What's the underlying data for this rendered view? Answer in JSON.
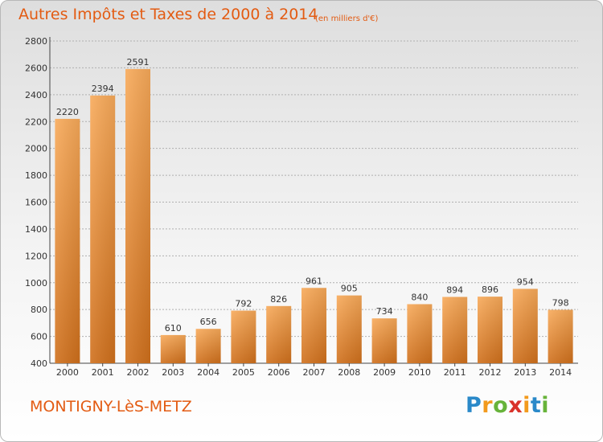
{
  "header": {
    "title": "Autres Impôts et Taxes de 2000 à 2014",
    "subtitle": "(en milliers d'€)"
  },
  "footer": {
    "commune": "MONTIGNY-LèS-METZ",
    "logo_text": "Proxiti",
    "logo_letters": [
      {
        "char": "P",
        "color": "#2a89c9"
      },
      {
        "char": "r",
        "color": "#f29a1d"
      },
      {
        "char": "o",
        "color": "#67b33a"
      },
      {
        "char": "x",
        "color": "#d9322b"
      },
      {
        "char": "i",
        "color": "#f29a1d"
      },
      {
        "char": "t",
        "color": "#2a89c9"
      },
      {
        "char": "i",
        "color": "#67b33a"
      }
    ]
  },
  "colors": {
    "accent": "#e35b12",
    "bar_light": "#f6a34e",
    "bar_dark": "#d2741f",
    "grid": "#b0b0b0"
  },
  "chart_data": {
    "type": "bar",
    "categories": [
      "2000",
      "2001",
      "2002",
      "2003",
      "2004",
      "2005",
      "2006",
      "2007",
      "2008",
      "2009",
      "2010",
      "2011",
      "2012",
      "2013",
      "2014"
    ],
    "values": [
      2220,
      2394,
      2591,
      610,
      656,
      792,
      826,
      961,
      905,
      734,
      840,
      894,
      896,
      954,
      798
    ],
    "ylim": [
      400,
      2800
    ],
    "yticks": [
      400,
      600,
      800,
      1000,
      1200,
      1400,
      1600,
      1800,
      2000,
      2200,
      2400,
      2600,
      2800
    ],
    "grid": true,
    "data_labels": true
  }
}
